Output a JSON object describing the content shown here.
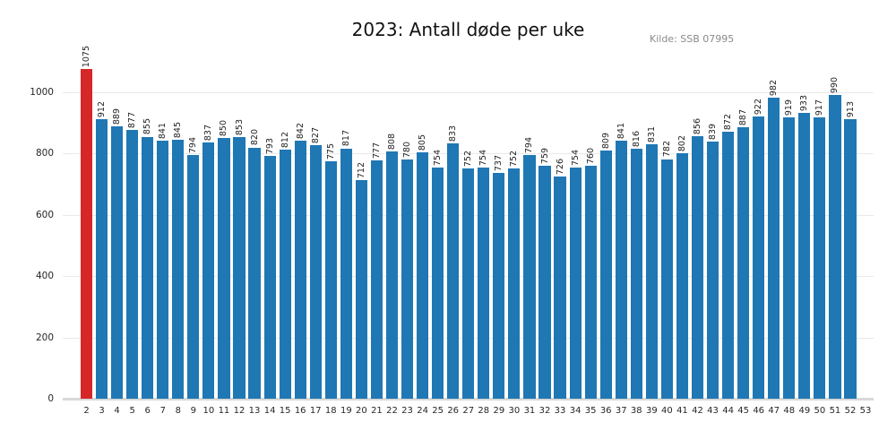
{
  "header": {
    "title": "2023: Antall døde per uke",
    "source": "Kilde: SSB 07995"
  },
  "colors": {
    "bar": "#1f77b4",
    "highlight": "#d62728",
    "grid": "#e9e9e9",
    "baseline": "#d8d8d8",
    "tick_text": "#262626",
    "value_text": "#1f1f1f",
    "title_text": "#121212",
    "source_text": "#8a8a8a"
  },
  "chart_data": {
    "type": "bar",
    "title": "2023: Antall døde per uke",
    "source": "Kilde: SSB 07995",
    "xlabel": "",
    "ylabel": "",
    "categories": [
      "2",
      "3",
      "4",
      "5",
      "6",
      "7",
      "8",
      "9",
      "10",
      "11",
      "12",
      "13",
      "14",
      "15",
      "16",
      "17",
      "18",
      "19",
      "20",
      "21",
      "22",
      "23",
      "24",
      "25",
      "26",
      "27",
      "28",
      "29",
      "30",
      "31",
      "32",
      "33",
      "34",
      "35",
      "36",
      "37",
      "38",
      "39",
      "40",
      "41",
      "42",
      "43",
      "44",
      "45",
      "46",
      "47",
      "48",
      "49",
      "50",
      "51",
      "52",
      "53"
    ],
    "values": [
      1075,
      912,
      889,
      877,
      855,
      841,
      845,
      794,
      837,
      850,
      853,
      820,
      793,
      812,
      842,
      827,
      775,
      817,
      712,
      777,
      808,
      780,
      805,
      754,
      833,
      752,
      754,
      737,
      752,
      794,
      759,
      726,
      754,
      760,
      809,
      841,
      816,
      831,
      782,
      802,
      856,
      839,
      872,
      887,
      922,
      982,
      919,
      933,
      917,
      990,
      913,
      null
    ],
    "highlight_index": 0,
    "value_labels": "rotated-vertical-above-bars",
    "yticks": [
      0,
      200,
      400,
      600,
      800,
      1000
    ],
    "ylim": [
      0,
      1120
    ],
    "grid": "horizontal",
    "legend": "none"
  }
}
